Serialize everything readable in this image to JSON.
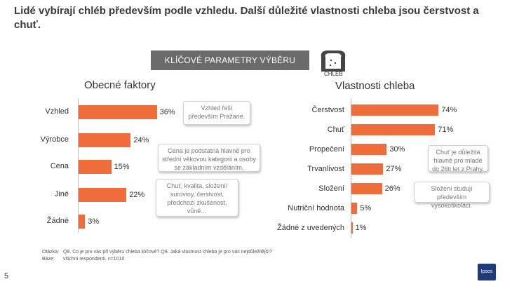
{
  "page": {
    "title": "Lidé vybírají chléb především podle vzhledu. Další důležité vlastnosti chleba jsou čerstvost a chuť.",
    "banner": "KLÍČOVÉ PARAMETRY VÝBĚRU",
    "bread_label": "CHLÉB",
    "page_number": "5",
    "logo_text": "Ipsos",
    "footer": {
      "question_label": "Otázka:",
      "question_text": "Q8. Co je pro vás při výběru chleba klíčové? Q9. Jaká vlastnost chleba je pro vás nejdůležitější?",
      "base_label": "Báze:",
      "base_text": "všichni respondenti, n=1010"
    },
    "callouts": [
      "Vzhled řeší především Pražané.",
      "Cena je podstatná hlavně pro střední věkovou kategorii a osoby se základním vzděláním.",
      "Chuť, kvalita, složení/ suroviny, čerstvost, předchozí zkušenost, vůně…",
      "Chuť je důležitá hlavně pro mladé do 26ti let z Prahy.",
      "Složení studují především vysokoškoláci."
    ],
    "colors": {
      "bar": "#ee6d3a",
      "banner": "#6b6b6b"
    }
  },
  "chart_data": [
    {
      "type": "bar",
      "orientation": "horizontal",
      "title": "Obecné faktory",
      "categories": [
        "Vzhled",
        "Výrobce",
        "Cena",
        "Jiné",
        "Žádné"
      ],
      "values": [
        36,
        24,
        15,
        22,
        3
      ],
      "value_labels": [
        "36%",
        "24%",
        "15%",
        "22%",
        "3%"
      ],
      "unit": "%",
      "xlim": [
        0,
        100
      ]
    },
    {
      "type": "bar",
      "orientation": "horizontal",
      "title": "Vlastnosti chleba",
      "categories": [
        "Čerstvost",
        "Chuť",
        "Propečení",
        "Trvanlivost",
        "Složení",
        "Nutriční hodnota",
        "Žádné z uvedených"
      ],
      "values": [
        74,
        71,
        30,
        27,
        26,
        5,
        1
      ],
      "value_labels": [
        "74%",
        "71%",
        "30%",
        "27%",
        "26%",
        "5%",
        "1%"
      ],
      "unit": "%",
      "xlim": [
        0,
        100
      ]
    }
  ]
}
